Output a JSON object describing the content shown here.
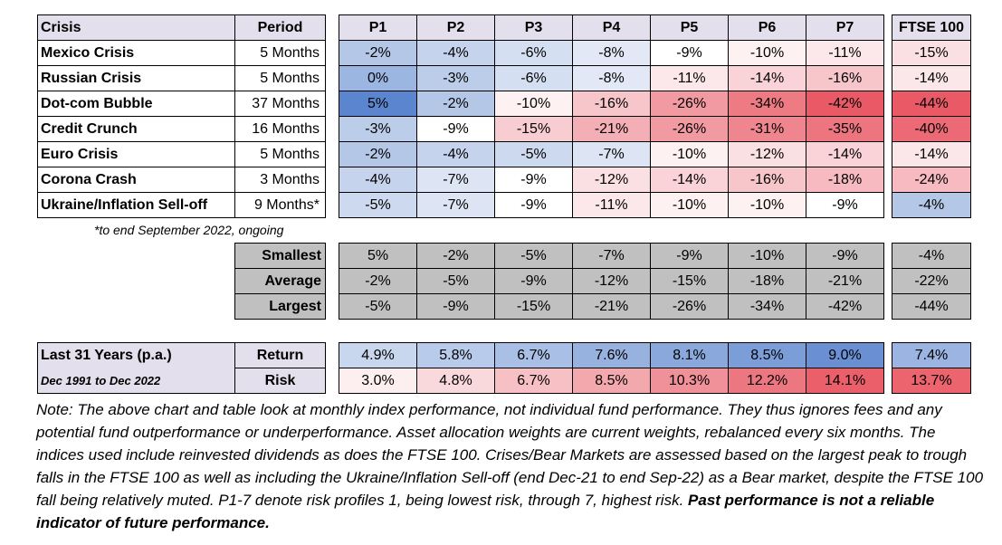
{
  "crisis_table": {
    "header": {
      "crisis": "Crisis",
      "period": "Period"
    },
    "rows": [
      {
        "crisis": "Mexico Crisis",
        "period": "5 Months"
      },
      {
        "crisis": "Russian Crisis",
        "period": "5 Months"
      },
      {
        "crisis": "Dot-com Bubble",
        "period": "37 Months"
      },
      {
        "crisis": "Credit Crunch",
        "period": "16 Months"
      },
      {
        "crisis": "Euro Crisis",
        "period": "5 Months"
      },
      {
        "crisis": "Corona Crash",
        "period": "3 Months"
      },
      {
        "crisis": "Ukraine/Inflation Sell-off",
        "period": "9 Months*"
      }
    ]
  },
  "footnote": "*to end September 2022, ongoing",
  "profiles_table": {
    "headers": [
      "P1",
      "P2",
      "P3",
      "P4",
      "P5",
      "P6",
      "P7"
    ],
    "rows": [
      {
        "cells": [
          "-2%",
          "-4%",
          "-6%",
          "-8%",
          "-9%",
          "-10%",
          "-11%"
        ],
        "colors": [
          "#b4c7e7",
          "#c5d3ec",
          "#d5dff2",
          "#e2e8f5",
          "#ffffff",
          "#fdf1f2",
          "#fce8ea"
        ]
      },
      {
        "cells": [
          "0%",
          "-3%",
          "-6%",
          "-8%",
          "-11%",
          "-14%",
          "-16%"
        ],
        "colors": [
          "#9cb6e2",
          "#bccde9",
          "#d5dff2",
          "#e2e8f5",
          "#fce8ea",
          "#f9d3d7",
          "#f7c6ca"
        ]
      },
      {
        "cells": [
          "5%",
          "-2%",
          "-10%",
          "-16%",
          "-26%",
          "-34%",
          "-42%"
        ],
        "colors": [
          "#5b85cf",
          "#b4c7e7",
          "#fdf1f2",
          "#f7c6ca",
          "#f29aa2",
          "#ee7a84",
          "#ea5a66"
        ]
      },
      {
        "cells": [
          "-3%",
          "-9%",
          "-15%",
          "-21%",
          "-26%",
          "-31%",
          "-35%"
        ],
        "colors": [
          "#bccde9",
          "#ffffff",
          "#f8cdd1",
          "#f4aeb5",
          "#f29aa2",
          "#ef858f",
          "#ed7580"
        ]
      },
      {
        "cells": [
          "-2%",
          "-4%",
          "-5%",
          "-7%",
          "-10%",
          "-12%",
          "-14%"
        ],
        "colors": [
          "#b4c7e7",
          "#c5d3ec",
          "#cdd9ef",
          "#dde5f4",
          "#fdf1f2",
          "#fbe0e3",
          "#f9d3d7"
        ]
      },
      {
        "cells": [
          "-4%",
          "-7%",
          "-9%",
          "-12%",
          "-14%",
          "-16%",
          "-18%"
        ],
        "colors": [
          "#c5d3ec",
          "#dde5f4",
          "#ffffff",
          "#fbe0e3",
          "#f9d3d7",
          "#f7c6ca",
          "#f6bac0"
        ]
      },
      {
        "cells": [
          "-5%",
          "-7%",
          "-9%",
          "-11%",
          "-10%",
          "-10%",
          "-9%"
        ],
        "colors": [
          "#cdd9ef",
          "#dde5f4",
          "#ffffff",
          "#fce8ea",
          "#fdf1f2",
          "#fdf1f2",
          "#ffffff"
        ]
      }
    ]
  },
  "ftse_table": {
    "header": "FTSE 100",
    "cells": [
      "-15%",
      "-14%",
      "-44%",
      "-40%",
      "-14%",
      "-24%",
      "-4%"
    ],
    "colors": [
      "#fbe0e3",
      "#fbe6e9",
      "#ea5a66",
      "#ec6a75",
      "#fbe6e9",
      "#f6bac0",
      "#b4c7e7"
    ]
  },
  "summary": {
    "labels": [
      "Smallest",
      "Average",
      "Largest"
    ],
    "rows": [
      [
        "5%",
        "-2%",
        "-5%",
        "-7%",
        "-9%",
        "-10%",
        "-9%"
      ],
      [
        "-2%",
        "-5%",
        "-9%",
        "-12%",
        "-15%",
        "-18%",
        "-21%"
      ],
      [
        "-5%",
        "-9%",
        "-15%",
        "-21%",
        "-26%",
        "-34%",
        "-42%"
      ]
    ],
    "ftse": [
      "-4%",
      "-22%",
      "-44%"
    ]
  },
  "long_term": {
    "title": "Last 31 Years (p.a.)",
    "subtitle": "Dec 1991 to Dec 2022",
    "return_label": "Return",
    "risk_label": "Risk",
    "return": [
      "4.9%",
      "5.8%",
      "6.7%",
      "7.6%",
      "8.1%",
      "8.5%",
      "9.0%"
    ],
    "return_colors": [
      "#c9d7ee",
      "#b9cbea",
      "#a9bfe5",
      "#98b2e0",
      "#8aa8dc",
      "#7b9dd8",
      "#6a90d3"
    ],
    "risk": [
      "3.0%",
      "4.8%",
      "6.7%",
      "8.5%",
      "10.3%",
      "12.2%",
      "14.1%"
    ],
    "risk_colors": [
      "#fdeef0",
      "#fad9dc",
      "#f6c0c5",
      "#f3a8ae",
      "#f09098",
      "#ed7780",
      "#ea5f6a"
    ],
    "ftse_return": "7.4%",
    "ftse_return_color": "#9bb4e1",
    "ftse_risk": "13.7%",
    "ftse_risk_color": "#eb646e"
  },
  "note": {
    "text": "Note: The above chart and table look at monthly index performance, not individual fund performance. They thus ignores fees and any potential fund outperformance or underperformance. Asset allocation weights are current weights, rebalanced every six months. The indices used include reinvested dividends as does the FTSE 100. Crises/Bear Markets are assessed based on the largest peak to trough falls in the FTSE 100 as well as including the Ukraine/Inflation Sell-off (end Dec-21 to end Sep-22) as a Bear market, despite the FTSE 100 fall being relatively muted. P1-7 denote risk profiles 1, being lowest risk, through 7, highest risk.",
    "bold": "Past performance is not a reliable indicator of future performance."
  }
}
